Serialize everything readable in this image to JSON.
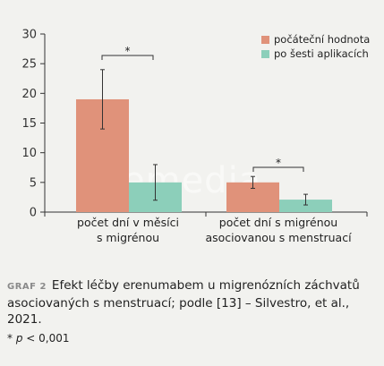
{
  "chart_data": {
    "type": "bar",
    "categories": [
      {
        "line1": "počet dní v měsíci",
        "line2": "s migrénou"
      },
      {
        "line1": "počet dní s migrénou",
        "line2": "asociovanou s menstruací"
      }
    ],
    "series": [
      {
        "name": "počáteční hodnota",
        "color": "#e0927a",
        "values": [
          19.0,
          5.0
        ],
        "error_low": [
          14.0,
          4.0
        ],
        "error_high": [
          24.0,
          6.0
        ]
      },
      {
        "name": "po šesti aplikacích",
        "color": "#8ccfba",
        "values": [
          5.0,
          2.1
        ],
        "error_low": [
          2.0,
          1.2
        ],
        "error_high": [
          8.0,
          3.0
        ]
      }
    ],
    "ylim": [
      0,
      30
    ],
    "yticks": [
      "0",
      "5",
      "10",
      "15",
      "20",
      "25",
      "30"
    ],
    "significance_marker": "*",
    "legend_position": "top-right",
    "grid": false
  },
  "watermark": "Remedia",
  "caption": {
    "tag": "GRAF 2",
    "text": "Efekt léčby erenumabem u migrenózních záchvatů asociovaných s menstruací; podle [13] – Silvestro, et al., 2021."
  },
  "footnote": {
    "symbol": "*",
    "p": "p",
    "rest": " < 0,001"
  }
}
